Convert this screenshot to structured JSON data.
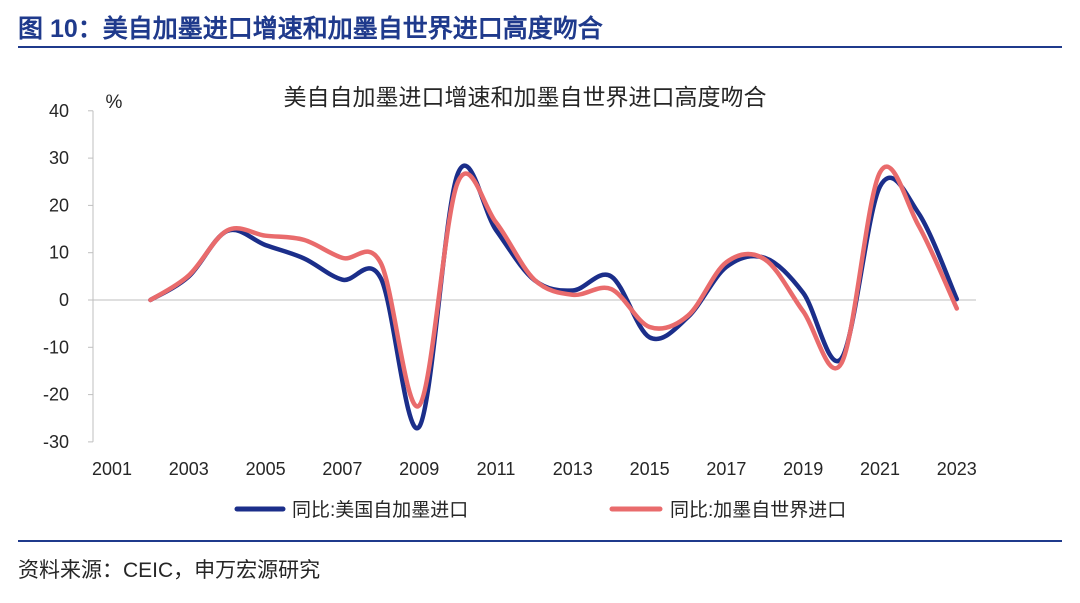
{
  "figure": {
    "title": "图 10：美自加墨进口增速和加墨自世界进口高度吻合",
    "source": "资料来源：CEIC，申万宏源研究"
  },
  "colors": {
    "accent": "#1f3a8c",
    "text": "#262626",
    "axis_line": "#bfbfbf"
  },
  "chart_data": {
    "type": "line",
    "title": "美自自加墨进口增速和加墨自世界进口高度吻合",
    "xlabel": "",
    "ylabel": "%",
    "xlim": [
      2001,
      2023
    ],
    "ylim": [
      -30,
      40
    ],
    "xticks": [
      2001,
      2003,
      2005,
      2007,
      2009,
      2011,
      2013,
      2015,
      2017,
      2019,
      2021,
      2023
    ],
    "yticks": [
      40,
      30,
      20,
      10,
      0,
      -10,
      -20,
      -30
    ],
    "grid": false,
    "legend": "bottom",
    "smooth": true,
    "x": [
      2002,
      2003,
      2004,
      2005,
      2006,
      2007,
      2008,
      2009,
      2010,
      2011,
      2012,
      2013,
      2014,
      2015,
      2016,
      2017,
      2018,
      2019,
      2020,
      2021,
      2022,
      2023
    ],
    "series": [
      {
        "name": "同比:美国自加墨进口",
        "color": "#1b2e8a",
        "values": [
          0,
          5.0,
          14.6,
          11.6,
          8.8,
          4.3,
          4.6,
          -26.8,
          26.6,
          14.8,
          4.2,
          2.0,
          5.0,
          -7.9,
          -3.6,
          7.0,
          8.9,
          1.5,
          -12.3,
          24.0,
          18.4,
          0.2
        ]
      },
      {
        "name": "同比:加墨自世界进口",
        "color": "#e96b6c",
        "values": [
          0,
          5.2,
          14.7,
          13.6,
          12.7,
          8.9,
          7.8,
          -22.3,
          24.8,
          16.4,
          4.3,
          1.1,
          2.3,
          -5.7,
          -3.3,
          8.0,
          8.6,
          -2.4,
          -13.3,
          27.0,
          15.8,
          -1.8
        ]
      }
    ]
  }
}
